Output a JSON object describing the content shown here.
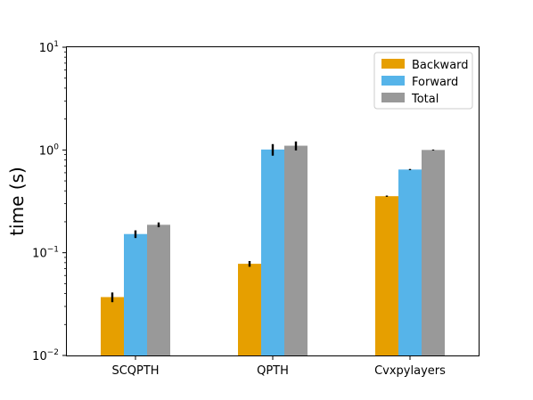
{
  "chart_data": {
    "type": "bar",
    "yscale": "log",
    "ylim": [
      0.01,
      10
    ],
    "ylabel": "time (s)",
    "xlabel": "",
    "title": "",
    "categories": [
      "SCQPTH",
      "QPTH",
      "Cvxpylayers"
    ],
    "yticks": [
      {
        "base": "10",
        "exp": "−2",
        "value": 0.01
      },
      {
        "base": "10",
        "exp": "−1",
        "value": 0.1
      },
      {
        "base": "10",
        "exp": "0",
        "value": 1
      },
      {
        "base": "10",
        "exp": "1",
        "value": 10
      }
    ],
    "series": [
      {
        "name": "Backward",
        "color": "#E69F00",
        "values": [
          0.037,
          0.078,
          0.355
        ],
        "err": [
          0.004,
          0.005,
          0.005
        ]
      },
      {
        "name": "Forward",
        "color": "#56B4E9",
        "values": [
          0.152,
          1.01,
          0.645
        ],
        "err": [
          0.013,
          0.13,
          0.008
        ]
      },
      {
        "name": "Total",
        "color": "#999999",
        "values": [
          0.187,
          1.1,
          1.0
        ],
        "err": [
          0.01,
          0.11,
          0.01
        ]
      }
    ],
    "legend_position": "top-right",
    "grid": false
  }
}
